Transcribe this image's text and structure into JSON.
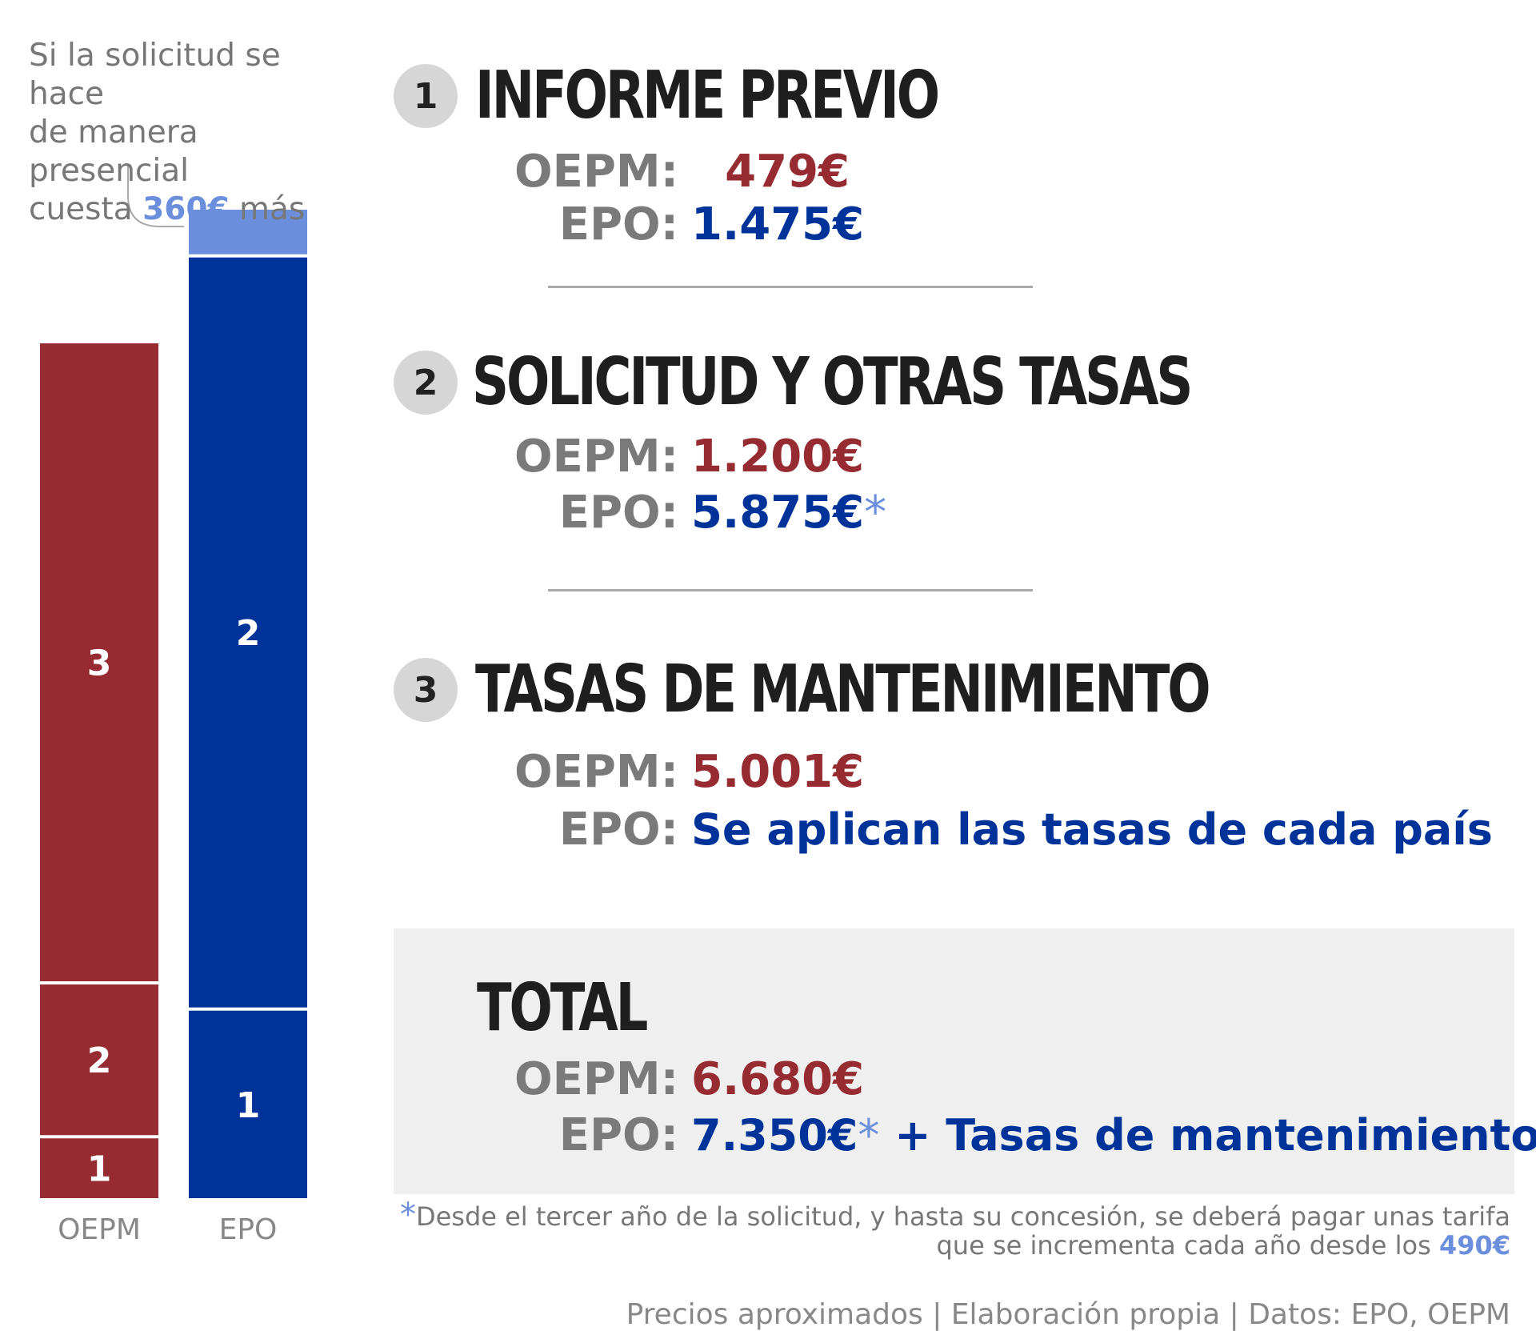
{
  "colors": {
    "oepm": "#962b31",
    "epo": "#003399",
    "epo_extra": "#6b8fdd",
    "label_gray": "#7a7a7a",
    "badge_bg": "#d6d6d6",
    "total_bg": "#efefef"
  },
  "note": {
    "line1": "Si la solicitud se hace",
    "line2": "de manera presencial",
    "line3_pre": "cuesta ",
    "line3_hl": "360€",
    "line3_post": " más"
  },
  "sections": [
    {
      "num": "1",
      "title": "INFORME PREVIO",
      "oepm_label": "OEPM:",
      "oepm_value": "479€",
      "epo_label": "EPO:",
      "epo_value": "1.475€",
      "epo_ast": ""
    },
    {
      "num": "2",
      "title": "SOLICITUD Y OTRAS TASAS",
      "oepm_label": "OEPM:",
      "oepm_value": "1.200€",
      "epo_label": "EPO:",
      "epo_value": "5.875€",
      "epo_ast": "*"
    },
    {
      "num": "3",
      "title": "TASAS DE MANTENIMIENTO",
      "oepm_label": "OEPM:",
      "oepm_value": "5.001€",
      "epo_label": "EPO:",
      "epo_value": "Se aplican las tasas de cada país",
      "epo_ast": ""
    }
  ],
  "total": {
    "title": "TOTAL",
    "oepm_label": "OEPM:",
    "oepm_value": "6.680€",
    "epo_label": "EPO:",
    "epo_value": "7.350€",
    "epo_ast": "*",
    "epo_extra": " + Tasas de mantenimiento"
  },
  "footnote": {
    "ast": "*",
    "line1": "Desde el tercer año de la solicitud, y hasta su concesión, se deberá pagar unas tarifa",
    "line2_pre": "que se incrementa cada año desde los ",
    "line2_hl": "490€"
  },
  "source": "Precios aproximados | Elaboración propia | Datos: EPO, OEPM",
  "chart_data": {
    "type": "bar",
    "stacked": true,
    "categories": [
      "OEPM",
      "EPO"
    ],
    "series": [
      {
        "name": "1",
        "values": [
          479,
          1475
        ]
      },
      {
        "name": "2",
        "values": [
          1200,
          5875
        ]
      },
      {
        "name": "3",
        "values": [
          5001,
          0
        ]
      },
      {
        "name": "",
        "values": [
          0,
          360
        ]
      }
    ],
    "segment_labels": [
      "1",
      "2",
      "3",
      ""
    ],
    "ylim": [
      0,
      7710
    ],
    "grid": false,
    "legend": "none"
  }
}
